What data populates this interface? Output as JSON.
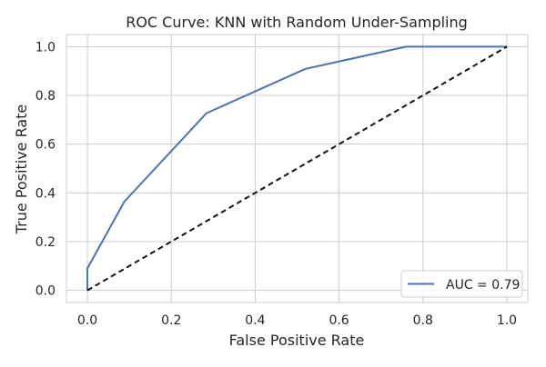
{
  "chart_data": {
    "type": "line",
    "title": "ROC Curve: KNN with Random Under-Sampling",
    "xlabel": "False Positive Rate",
    "ylabel": "True Positive Rate",
    "xlim": [
      -0.05,
      1.05
    ],
    "ylim": [
      -0.05,
      1.05
    ],
    "xticks": [
      0.0,
      0.2,
      0.4,
      0.6,
      0.8,
      1.0
    ],
    "xtick_labels": [
      "0.0",
      "0.2",
      "0.4",
      "0.6",
      "0.8",
      "1.0"
    ],
    "yticks": [
      0.0,
      0.2,
      0.4,
      0.6,
      0.8,
      1.0
    ],
    "ytick_labels": [
      "0.0",
      "0.2",
      "0.4",
      "0.6",
      "0.8",
      "1.0"
    ],
    "grid": true,
    "legend_position": "lower-right",
    "series": [
      {
        "name": "AUC = 0.79",
        "color": "#4c72b0",
        "style": "solid",
        "x": [
          0.0,
          0.0,
          0.088,
          0.284,
          0.52,
          0.76,
          1.0
        ],
        "y": [
          0.0,
          0.09,
          0.364,
          0.727,
          0.909,
          1.0,
          1.0
        ]
      },
      {
        "color": "#111111",
        "style": "dashed",
        "x": [
          0.0,
          1.0
        ],
        "y": [
          0.0,
          1.0
        ]
      }
    ]
  }
}
